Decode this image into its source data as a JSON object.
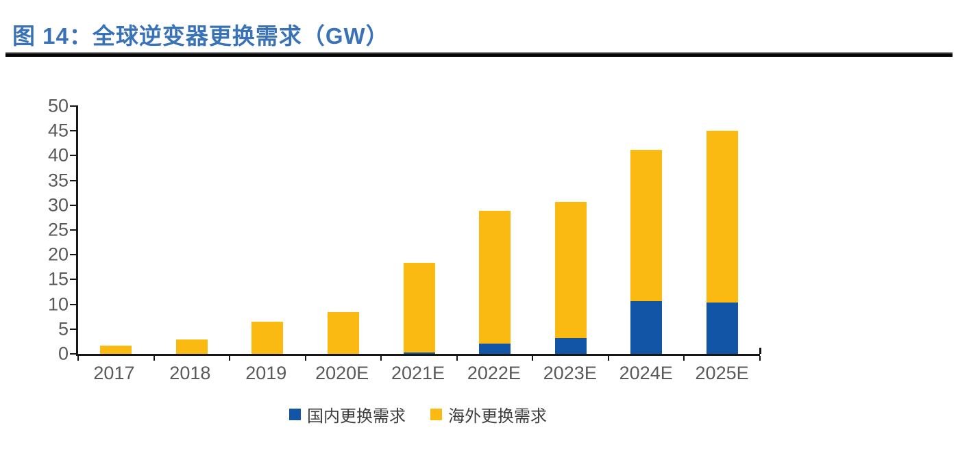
{
  "figure": {
    "title": "图 14：全球逆变器更换需求（GW）"
  },
  "chart_data": {
    "type": "bar",
    "stacked": true,
    "title": "图 14：全球逆变器更换需求（GW）",
    "unit": "GW",
    "categories": [
      "2017",
      "2018",
      "2019",
      "2020E",
      "2021E",
      "2022E",
      "2023E",
      "2024E",
      "2025E"
    ],
    "series": [
      {
        "name": "国内更换需求",
        "color": "#1254A6",
        "values": [
          0,
          0,
          0,
          0,
          0.3,
          2.1,
          3.2,
          10.6,
          10.3
        ]
      },
      {
        "name": "海外更换需求",
        "color": "#FBBA12",
        "values": [
          1.6,
          2.9,
          6.5,
          8.4,
          18.1,
          26.8,
          27.4,
          30.5,
          34.8
        ]
      }
    ],
    "totals": [
      1.6,
      2.9,
      6.5,
      8.4,
      18.4,
      28.9,
      30.6,
      41.1,
      45.1
    ],
    "ylim": [
      0,
      50
    ],
    "yticks": [
      0,
      5,
      10,
      15,
      20,
      25,
      30,
      35,
      40,
      45,
      50
    ],
    "xlabel": "",
    "ylabel": "",
    "grid": false,
    "legend_position": "bottom"
  },
  "colors": {
    "title": "#3A72B8",
    "axis": "#161616",
    "tick_label": "#595959",
    "legend_text": "#3D3D3D",
    "domestic_bar": "#1254A6",
    "overseas_bar": "#FBBA12",
    "rule": "#000000"
  }
}
